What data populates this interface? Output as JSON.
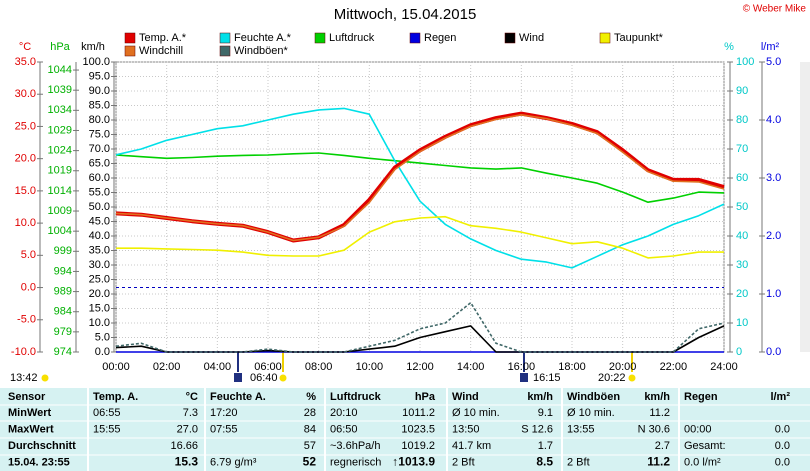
{
  "chart_data": {
    "type": "line",
    "title": "Mittwoch, 15.04.2015",
    "copyright": "© Weber Mike",
    "xlim": [
      0,
      24
    ],
    "xticks": [
      {
        "value": 0,
        "label": "00:00"
      },
      {
        "value": 2,
        "label": "02:00"
      },
      {
        "value": 4,
        "label": "04:00"
      },
      {
        "value": 6,
        "label": "06:00"
      },
      {
        "value": 8,
        "label": "08:00"
      },
      {
        "value": 10,
        "label": "10:00"
      },
      {
        "value": 12,
        "label": "12:00"
      },
      {
        "value": 14,
        "label": "14:00"
      },
      {
        "value": 16,
        "label": "16:00"
      },
      {
        "value": 18,
        "label": "18:00"
      },
      {
        "value": 20,
        "label": "20:00"
      },
      {
        "value": 22,
        "label": "22:00"
      },
      {
        "value": 24,
        "label": "24:00"
      }
    ],
    "x": [
      0,
      1,
      2,
      3,
      4,
      5,
      6,
      7,
      8,
      9,
      10,
      11,
      12,
      13,
      14,
      15,
      16,
      17,
      18,
      19,
      20,
      21,
      22,
      23,
      24
    ],
    "axes": [
      {
        "label": "°C",
        "color": "#e00000",
        "lim": [
          -10,
          35
        ],
        "ticks": [
          {
            "value": 35,
            "label": "35.0"
          },
          {
            "value": 30,
            "label": "30.0"
          },
          {
            "value": 25,
            "label": "25.0"
          },
          {
            "value": 20,
            "label": "20.0"
          },
          {
            "value": 15,
            "label": "15.0"
          },
          {
            "value": 10,
            "label": "10.0"
          },
          {
            "value": 5,
            "label": "5.0"
          },
          {
            "value": 0,
            "label": "0.0"
          },
          {
            "value": -5,
            "label": "-5.0"
          },
          {
            "value": -10,
            "label": "-10.0"
          }
        ]
      },
      {
        "label": "hPa",
        "color": "#00b000",
        "lim": [
          974,
          1046
        ],
        "ticks": [
          1044,
          1039,
          1034,
          1029,
          1024,
          1019,
          1014,
          1009,
          1004,
          999,
          994,
          989,
          984,
          979,
          974
        ]
      },
      {
        "label": "km/h",
        "color": "#000000",
        "lim": [
          0,
          100
        ],
        "ticks": [
          {
            "value": 100,
            "label": "100.0"
          },
          {
            "value": 95,
            "label": "95.0"
          },
          {
            "value": 90,
            "label": "90.0"
          },
          {
            "value": 85,
            "label": "85.0"
          },
          {
            "value": 80,
            "label": "80.0"
          },
          {
            "value": 75,
            "label": "75.0"
          },
          {
            "value": 70,
            "label": "70.0"
          },
          {
            "value": 65,
            "label": "65.0"
          },
          {
            "value": 60,
            "label": "60.0"
          },
          {
            "value": 55,
            "label": "55.0"
          },
          {
            "value": 50,
            "label": "50.0"
          },
          {
            "value": 45,
            "label": "45.0"
          },
          {
            "value": 40,
            "label": "40.0"
          },
          {
            "value": 35,
            "label": "35.0"
          },
          {
            "value": 30,
            "label": "30.0"
          },
          {
            "value": 25,
            "label": "25.0"
          },
          {
            "value": 20,
            "label": "20.0"
          },
          {
            "value": 15,
            "label": "15.0"
          },
          {
            "value": 10,
            "label": "10.0"
          },
          {
            "value": 5,
            "label": "5.0"
          },
          {
            "value": 0,
            "label": "0.0"
          }
        ]
      },
      {
        "label": "%",
        "color": "#00c8c8",
        "lim": [
          0,
          100
        ],
        "ticks": [
          100,
          90,
          80,
          70,
          60,
          50,
          40,
          30,
          20,
          10,
          0
        ]
      },
      {
        "label": "l/m²",
        "color": "#0000e0",
        "lim": [
          0,
          5
        ],
        "ticks": [
          {
            "value": 5,
            "label": "5.0"
          },
          {
            "value": 4,
            "label": "4.0"
          },
          {
            "value": 3,
            "label": "3.0"
          },
          {
            "value": 2,
            "label": "2.0"
          },
          {
            "value": 1,
            "label": "1.0"
          },
          {
            "value": 0,
            "label": "0.0"
          }
        ]
      }
    ],
    "grid": true,
    "zero_line": true,
    "series": [
      {
        "name": "Temp. A.*",
        "color": "#e00000",
        "axis": 0,
        "values": [
          11.5,
          11.3,
          10.8,
          10.3,
          9.9,
          9.6,
          8.6,
          7.3,
          7.8,
          9.7,
          13.6,
          18.6,
          21.3,
          23.4,
          25.2,
          26.3,
          27.0,
          26.3,
          25.4,
          24.1,
          21.3,
          18.2,
          16.7,
          16.7,
          15.6
        ]
      },
      {
        "name": "Feuchte A.*",
        "color": "#00e0e8",
        "axis": 3,
        "values": [
          68,
          70,
          73,
          75,
          77,
          78,
          80,
          82,
          83.5,
          84,
          82,
          66,
          52,
          44,
          39,
          35,
          32,
          31,
          29,
          33,
          37,
          40,
          44,
          47,
          51
        ]
      },
      {
        "name": "Luftdruck",
        "color": "#00d000",
        "axis": 1,
        "values": [
          1022.9,
          1022.5,
          1022.1,
          1022.3,
          1022.6,
          1022.8,
          1022.9,
          1023.2,
          1023.4,
          1022.8,
          1022.1,
          1021.5,
          1020.9,
          1020.3,
          1019.7,
          1019.4,
          1019.7,
          1018.4,
          1017.2,
          1015.9,
          1013.7,
          1011.2,
          1012.2,
          1013.7,
          1013.5
        ]
      },
      {
        "name": "Regen",
        "color": "#0000e0",
        "axis": 4,
        "values": [
          0,
          0,
          0,
          0,
          0,
          0,
          0,
          0,
          0,
          0,
          0,
          0,
          0,
          0,
          0,
          0,
          0,
          0,
          0,
          0,
          0,
          0,
          0,
          0,
          0
        ]
      },
      {
        "name": "Wind",
        "color": "#000000",
        "axis": 2,
        "values": [
          1.5,
          2,
          0,
          0,
          0,
          0,
          0.5,
          0,
          0,
          0,
          1,
          2,
          5,
          7,
          9,
          0,
          0,
          0,
          0,
          0,
          0,
          0,
          0,
          5,
          9
        ]
      },
      {
        "name": "Taupunkt*",
        "color": "#f0f000",
        "axis": 0,
        "values": [
          6.1,
          6.1,
          6.0,
          5.9,
          5.8,
          5.5,
          5.0,
          4.9,
          4.9,
          5.8,
          8.6,
          10.2,
          10.8,
          11.0,
          9.6,
          9.2,
          8.6,
          7.7,
          6.8,
          7.1,
          6.1,
          4.6,
          4.9,
          5.5,
          5.5
        ]
      },
      {
        "name": "Windchill",
        "color": "#e07020",
        "axis": 0,
        "values": [
          11.5,
          11.3,
          10.8,
          10.3,
          9.9,
          9.6,
          8.6,
          7.3,
          7.8,
          9.5,
          13.2,
          18.3,
          21.1,
          23.2,
          25.0,
          26.1,
          26.8,
          26.2,
          25.2,
          23.9,
          21.0,
          18.0,
          16.5,
          16.4,
          15.3
        ]
      },
      {
        "name": "Windböen*",
        "color": "#406868",
        "axis": 2,
        "dashed": true,
        "values": [
          2,
          3,
          0,
          0,
          0,
          0,
          1,
          0,
          0,
          0,
          2,
          4,
          8,
          10,
          17,
          3,
          0,
          0,
          0,
          0,
          0,
          0,
          0,
          8,
          10
        ]
      }
    ],
    "sun_moon": [
      "13:42",
      "06:40",
      "16:15",
      "20:22"
    ]
  },
  "table": {
    "header": [
      "Sensor",
      "Temp. A.",
      "°C",
      "Feuchte A.",
      "%",
      "Luftdruck",
      "hPa",
      "Wind",
      "km/h",
      "Windböen",
      "km/h",
      "Regen",
      "l/m²"
    ],
    "rows": [
      [
        "MinWert",
        "06:55",
        "7.3",
        "17:20",
        "28",
        "20:10",
        "1011.2",
        "Ø 10 min.",
        "9.1",
        "Ø 10 min.",
        "11.2",
        null,
        null
      ],
      [
        "MaxWert",
        "15:55",
        "27.0",
        "07:55",
        "84",
        "06:50",
        "1023.5",
        "13:50",
        "S 12.6",
        "13:55",
        "N 30.6",
        "00:00",
        "0.0"
      ],
      [
        "Durchschnitt",
        null,
        "16.66",
        null,
        "57",
        "~3.6hPa/h",
        "1019.2",
        "41.7 km",
        "1.7",
        null,
        "2.7",
        "Gesamt:",
        "0.0"
      ],
      [
        "15.04. 23:55",
        null,
        "15.3",
        "6.79 g/m³",
        "52",
        "regnerisch",
        "↑1013.9",
        "2 Bft",
        "8.5",
        "2 Bft",
        "11.2",
        "0.0 l/m²",
        "0.0"
      ]
    ]
  }
}
